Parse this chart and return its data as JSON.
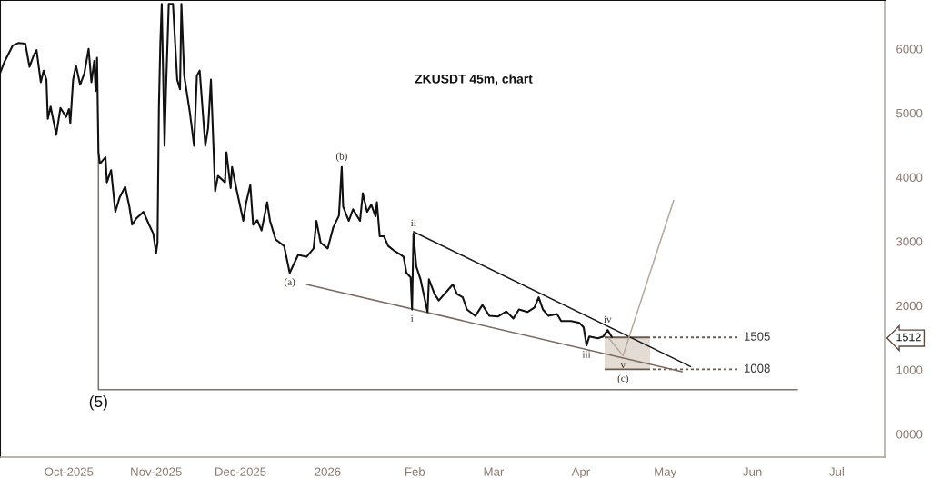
{
  "chart_data": {
    "type": "line",
    "title": "ZKUSDT 45m, chart",
    "xlim": [
      "2025-09-06T12:00",
      "2026-07-18"
    ],
    "ylim": [
      -360,
      6760
    ],
    "xticks": [
      {
        "value": "2025-10-01",
        "label": "Oct-2025"
      },
      {
        "value": "2025-11-01",
        "label": "Nov-2025"
      },
      {
        "value": "2025-12-01",
        "label": "Dec-2025"
      },
      {
        "value": "2026-01-01",
        "label": "2026"
      },
      {
        "value": "2026-02-01",
        "label": "Feb"
      },
      {
        "value": "2026-03-01",
        "label": "Mar"
      },
      {
        "value": "2026-04-01",
        "label": "Apr"
      },
      {
        "value": "2026-05-01",
        "label": "May"
      },
      {
        "value": "2026-06-01",
        "label": "Jun"
      },
      {
        "value": "2026-07-01",
        "label": "Jul"
      }
    ],
    "yticks": [
      {
        "value": 0,
        "label": "0000"
      },
      1000,
      1512,
      2000,
      3000,
      4000,
      5000,
      6000
    ],
    "series": [
      {
        "color": "#111111",
        "x": [
          "2025-09-06T12:00",
          "2025-09-08",
          "2025-09-11",
          "2025-09-13",
          "2025-09-15T12:00",
          "2025-09-17",
          "2025-09-18T12:00",
          "2025-09-19T12:00",
          "2025-09-21",
          "2025-09-22",
          "2025-09-23",
          "2025-09-23T12:00",
          "2025-09-24T12:00",
          "2025-09-26T12:00",
          "2025-09-28",
          "2025-09-30",
          "2025-10-01",
          "2025-10-01T12:00",
          "2025-10-02T12:00",
          "2025-10-03T12:00",
          "2025-10-05",
          "2025-10-06T12:00",
          "2025-10-08",
          "2025-10-09",
          "2025-10-10",
          "2025-10-10T12:00",
          "2025-10-11",
          "2025-10-11T12:00",
          "2025-10-12",
          "2025-10-14",
          "2025-10-14T12:00",
          "2025-10-16",
          "2025-10-17T12:00",
          "2025-10-19",
          "2025-10-21",
          "2025-10-22T12:00",
          "2025-10-23T12:00",
          "2025-10-25",
          "2025-10-27T12:00",
          "2025-10-29T12:00",
          "2025-10-31",
          "2025-11-01",
          "2025-11-01T12:00",
          "2025-11-02",
          "2025-11-02T12:00",
          "2025-11-03",
          "2025-11-04",
          "2025-11-04T12:00",
          "2025-11-05T12:00",
          "2025-11-07",
          "2025-11-08T12:00",
          "2025-11-09T12:00",
          "2025-11-10",
          "2025-11-11",
          "2025-11-13",
          "2025-11-14T12:00",
          "2025-11-15T12:00",
          "2025-11-16T12:00",
          "2025-11-18T12:00",
          "2025-11-19T12:00",
          "2025-11-20T12:00",
          "2025-11-22",
          "2025-11-23",
          "2025-11-25T12:00",
          "2025-11-26",
          "2025-11-27T12:00",
          "2025-11-28",
          "2025-11-29T12:00",
          "2025-12-02",
          "2025-12-03",
          "2025-12-04T12:00",
          "2025-12-05T12:00",
          "2025-12-07",
          "2025-12-08T12:00",
          "2025-12-10T12:00",
          "2025-12-11T12:00",
          "2025-12-13T12:00",
          "2025-12-16T12:00",
          "2025-12-18T12:00",
          "2025-12-21T12:00",
          "2025-12-24T12:00",
          "2025-12-27",
          "2025-12-28",
          "2025-12-29T12:00",
          "2026-01-01",
          "2026-01-03",
          "2026-01-05",
          "2026-01-06",
          "2026-01-06T12:00",
          "2026-01-08T12:00",
          "2026-01-10",
          "2026-01-12T12:00",
          "2026-01-13T12:00",
          "2026-01-15",
          "2026-01-16T12:00",
          "2026-01-18",
          "2026-01-18T12:00",
          "2026-01-19T12:00",
          "2026-01-21",
          "2026-01-22T12:00",
          "2026-01-24T12:00",
          "2026-01-27",
          "2026-01-28",
          "2026-01-29",
          "2026-01-30T12:00",
          "2026-01-31",
          "2026-01-31T12:00",
          "2026-02-01T12:00",
          "2026-02-03",
          "2026-02-05T12:00",
          "2026-02-06",
          "2026-02-08",
          "2026-02-09T12:00",
          "2026-02-12T12:00",
          "2026-02-14T12:00",
          "2026-02-16",
          "2026-02-18",
          "2026-02-19T12:00",
          "2026-02-22T12:00",
          "2026-02-25",
          "2026-02-27T12:00",
          "2026-03-02T12:00",
          "2026-03-05T12:00",
          "2026-03-08",
          "2026-03-10",
          "2026-03-13",
          "2026-03-15T12:00",
          "2026-03-17",
          "2026-03-18T12:00",
          "2026-03-20T12:00",
          "2026-03-23T12:00",
          "2026-03-25",
          "2026-03-28T12:00",
          "2026-03-31T12:00",
          "2026-04-02",
          "2026-04-03",
          "2026-04-04",
          "2026-04-07",
          "2026-04-09",
          "2026-04-10T12:00",
          "2026-04-12"
        ],
        "values": [
          5620,
          5790,
          6050,
          6090,
          6080,
          5720,
          5900,
          5980,
          5480,
          5660,
          5520,
          4910,
          5100,
          4660,
          5080,
          4940,
          5060,
          4840,
          5520,
          5740,
          5440,
          5620,
          6000,
          5480,
          5810,
          5340,
          5860,
          4390,
          4210,
          4310,
          3920,
          4110,
          3460,
          3680,
          3850,
          3540,
          3260,
          3360,
          3460,
          3260,
          3120,
          2820,
          2980,
          5100,
          6080,
          6700,
          4490,
          5340,
          6700,
          6700,
          5520,
          5370,
          6700,
          5580,
          5010,
          4490,
          5580,
          5660,
          4490,
          4770,
          5520,
          3780,
          4020,
          3920,
          4390,
          3830,
          4160,
          3830,
          3320,
          3600,
          3880,
          3260,
          3330,
          3170,
          3610,
          3320,
          3030,
          2930,
          2510,
          2790,
          2760,
          2890,
          3320,
          2980,
          2890,
          3220,
          3400,
          4160,
          3540,
          3320,
          3500,
          3320,
          3750,
          3460,
          3570,
          3390,
          3610,
          3080,
          3080,
          2930,
          2860,
          2790,
          2760,
          2510,
          2440,
          1940,
          3120,
          2610,
          2410,
          1900,
          2410,
          2180,
          2080,
          2230,
          2330,
          2180,
          2130,
          1940,
          1840,
          2010,
          1840,
          1830,
          1910,
          1800,
          1940,
          1900,
          1970,
          2130,
          1940,
          1840,
          1870,
          1760,
          1760,
          1730,
          1660,
          1380,
          1520,
          1490,
          1520,
          1620,
          1512
        ]
      },
      {
        "color": "#1a1a1a",
        "x": [
          "2026-01-31T12:00",
          "2026-05-10"
        ],
        "values": [
          3150,
          1050
        ]
      },
      {
        "color": "#7b6a5f",
        "x": [
          "2025-12-24T12:00",
          "2026-05-07"
        ],
        "values": [
          2330,
          970
        ]
      },
      {
        "color": "#b5a79c",
        "x": [
          "2026-04-11",
          "2026-04-16",
          "2026-05-04"
        ],
        "values": [
          1490,
          1220,
          3640
        ]
      },
      {
        "color": "#7d736d",
        "x": [
          "2025-10-11T12:00",
          "2025-10-11T12:00",
          "2026-06-17"
        ],
        "values": [
          4390,
          690,
          690
        ]
      }
    ],
    "bands": [
      {
        "axis": "y",
        "from": 1008,
        "to": 1505,
        "color": "#e3dcd5"
      }
    ],
    "ref_lines": [
      {
        "axis": "y",
        "value": 1505,
        "label": "1505",
        "line_style": "dashed",
        "color": "#6b5a4e"
      },
      {
        "axis": "y",
        "value": 1008,
        "label": "1008",
        "line_style": "dashed",
        "color": "#6b5a4e"
      }
    ],
    "annotations": [
      {
        "text": "(5)",
        "x": "2025-10-11T12:00",
        "y": 690
      },
      {
        "text": "(a)",
        "x": "2025-12-18T12:00",
        "y": 2510
      },
      {
        "text": "(b)",
        "x": "2026-01-06",
        "y": 4160
      },
      {
        "text": "i",
        "x": "2026-01-31",
        "y": 1940
      },
      {
        "text": "ii",
        "x": "2026-01-31T12:00",
        "y": 3120
      },
      {
        "text": "iii",
        "x": "2026-04-03",
        "y": 1380
      },
      {
        "text": "iv",
        "x": "2026-04-10T12:00",
        "y": 1620
      },
      {
        "text": "v",
        "x": "2026-04-16",
        "y": 1220
      },
      {
        "text": "(c)",
        "x": "2026-04-16",
        "y": 1008
      }
    ]
  }
}
